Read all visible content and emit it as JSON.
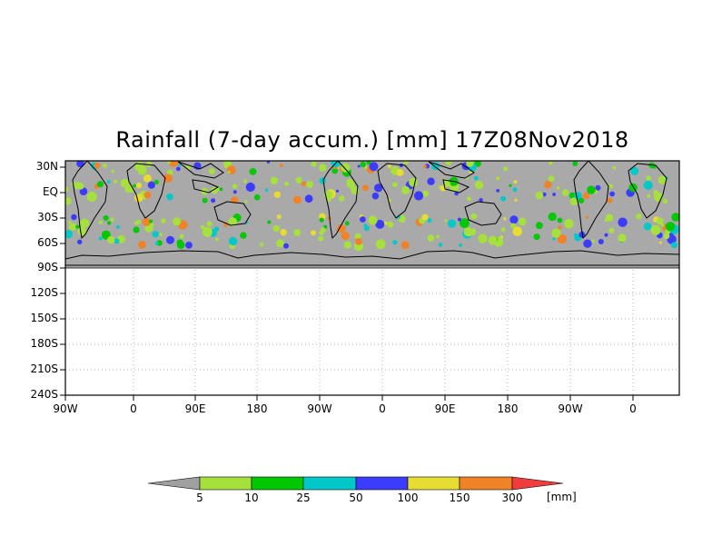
{
  "title": "Rainfall (7-day accum.) [mm] 17Z08Nov2018",
  "y_ticks": [
    "30N",
    "EQ",
    "30S",
    "60S",
    "90S",
    "120S",
    "150S",
    "180S",
    "210S",
    "240S"
  ],
  "x_ticks": [
    "90W",
    "0",
    "90E",
    "180",
    "90W",
    "0",
    "90E",
    "180",
    "90W",
    "0"
  ],
  "colorbar": {
    "labels": [
      "5",
      "10",
      "25",
      "50",
      "100",
      "150",
      "300"
    ],
    "units": "[mm]",
    "colors": [
      "#a0a0a0",
      "#a6e03c",
      "#00c800",
      "#00c8c8",
      "#3c3cff",
      "#e6dc32",
      "#f08228",
      "#f03c3c"
    ]
  },
  "colors": {
    "land_no_rain": "#a9a9a9",
    "ocean_no_rain": "#a9a9a9",
    "frame": "#000000",
    "grid": "#b4b4b4"
  }
}
